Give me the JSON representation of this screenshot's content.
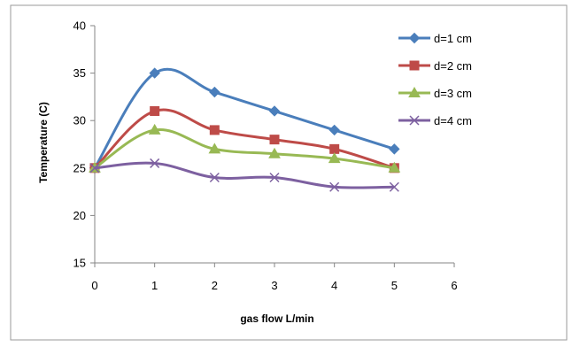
{
  "chart_data": {
    "type": "line",
    "title": "",
    "xlabel": "gas flow   L/min",
    "ylabel": "Temperature    (C)",
    "x": [
      0,
      1,
      2,
      3,
      4,
      5
    ],
    "xlim": [
      0,
      6
    ],
    "ylim": [
      15,
      40
    ],
    "xticks": [
      0,
      1,
      2,
      3,
      4,
      5,
      6
    ],
    "yticks": [
      15,
      20,
      25,
      30,
      35,
      40
    ],
    "grid": false,
    "legend_position": "right",
    "smooth": true,
    "series": [
      {
        "name": "d=1 cm",
        "values": [
          25,
          35,
          33,
          31,
          29,
          27
        ],
        "color": "#4a7ebb",
        "marker": "diamond"
      },
      {
        "name": "d=2 cm",
        "values": [
          25,
          31,
          29,
          28,
          27,
          25
        ],
        "color": "#be4b48",
        "marker": "square"
      },
      {
        "name": "d=3 cm",
        "values": [
          25,
          29,
          27,
          26.5,
          26,
          25
        ],
        "color": "#98b954",
        "marker": "triangle"
      },
      {
        "name": "d=4 cm",
        "values": [
          25,
          25.5,
          24,
          24,
          23,
          23
        ],
        "color": "#7d60a0",
        "marker": "x"
      }
    ]
  }
}
